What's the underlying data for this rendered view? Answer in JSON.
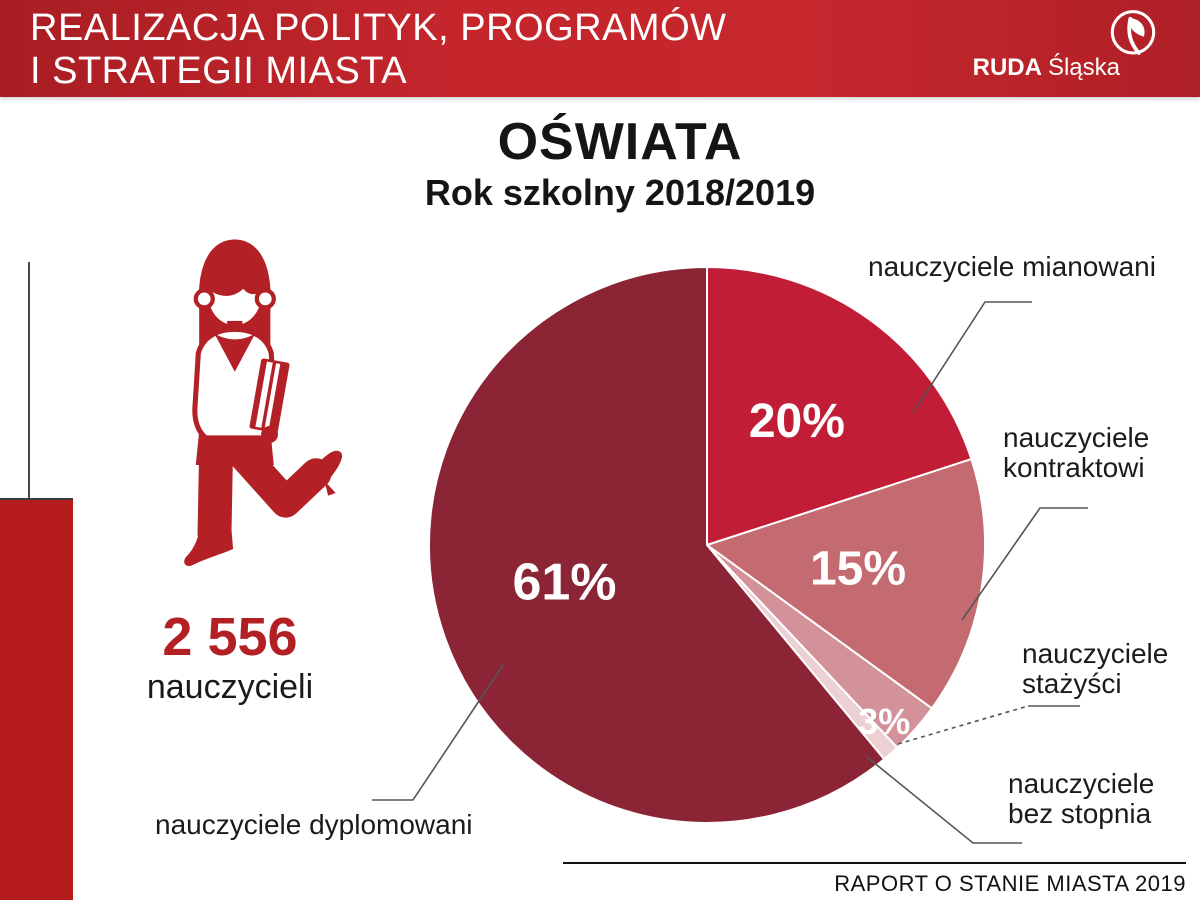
{
  "banner": {
    "title_line1": "REALIZACJA POLITYK, PROGRAMÓW",
    "title_line2": "I STRATEGII MIASTA",
    "brand_bold": "RUDA",
    "brand_light": "Śląska"
  },
  "page": {
    "title": "OŚWIATA",
    "subtitle": "Rok szkolny 2018/2019"
  },
  "stat": {
    "value": "2 556",
    "label": "nauczycieli"
  },
  "footer": {
    "label": "RAPORT O STANIE MIASTA 2019"
  },
  "colors": {
    "accent_red": "#B32025",
    "left_bar_red": "#B41B1A",
    "banner_red": "#C4262C",
    "label_text": "#1B1B1B"
  },
  "chart_data": {
    "type": "pie",
    "title": "OŚWIATA",
    "subtitle": "Rok szkolny 2018/2019",
    "start_angle_deg": 0,
    "direction": "clockwise",
    "slices": [
      {
        "label": "nauczyciele mianowani",
        "value": 20,
        "value_label": "20%",
        "color": "#C11D36"
      },
      {
        "label": "nauczyciele kontraktowi",
        "value": 15,
        "value_label": "15%",
        "color": "#C46B71"
      },
      {
        "label": "nauczyciele stażyści",
        "value": 3,
        "value_label": "3%",
        "color": "#D3919A"
      },
      {
        "label": "nauczyciele bez stopnia",
        "value": 1,
        "value_label": "",
        "color": "#EBD0D4"
      },
      {
        "label": "nauczyciele dyplomowani",
        "value": 61,
        "value_label": "61%",
        "color": "#8B2435"
      }
    ]
  }
}
